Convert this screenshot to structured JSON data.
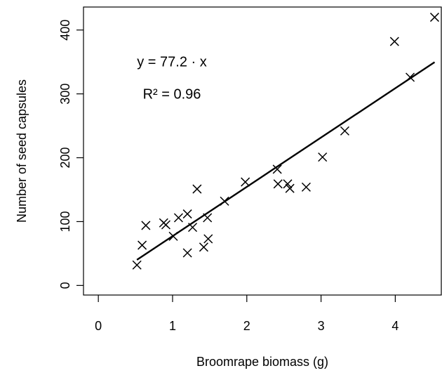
{
  "chart_data": {
    "type": "scatter",
    "x_label": "Broomrape biomass (g)",
    "y_label": "Number of seed capsules",
    "annotations": [
      "y = 77.2 · x",
      "R² = 0.96"
    ],
    "fit": {
      "slope": 77.2
    },
    "color": "#000000",
    "x": [
      0.52,
      0.59,
      0.64,
      0.88,
      0.91,
      1.01,
      1.08,
      1.2,
      1.2,
      1.27,
      1.33,
      1.42,
      1.47,
      1.48,
      1.7,
      1.98,
      2.41,
      2.42,
      2.55,
      2.58,
      2.8,
      3.02,
      3.32,
      3.99,
      4.2,
      4.53
    ],
    "values": [
      32,
      63,
      94,
      98,
      95,
      77,
      106,
      112,
      51,
      91,
      151,
      60,
      106,
      73,
      132,
      162,
      182,
      159,
      159,
      152,
      154,
      201,
      242,
      382,
      326,
      420
    ],
    "xlim": [
      -0.2,
      4.62
    ],
    "xticks": [
      0,
      1,
      2,
      3,
      4
    ],
    "ylim": [
      -15,
      436
    ],
    "yticks": [
      0,
      100,
      200,
      300,
      400
    ]
  }
}
